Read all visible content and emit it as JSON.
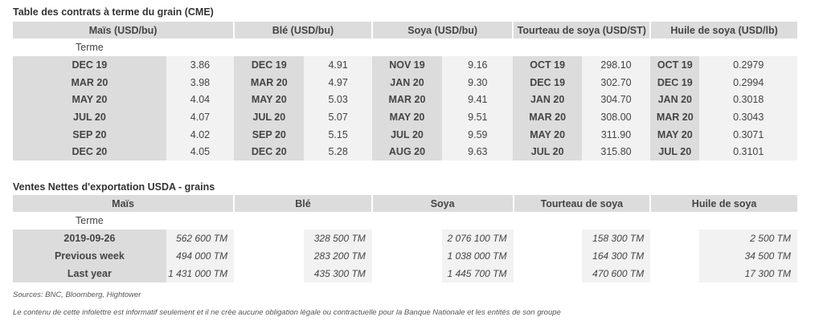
{
  "futures": {
    "title": "Table des contrats à terme du grain (CME)",
    "terme_label": "Terme",
    "columns": [
      {
        "header": "Maïs (USD/bu)",
        "rows": [
          [
            "DEC 19",
            "3.86"
          ],
          [
            "MAR 20",
            "3.98"
          ],
          [
            "MAY 20",
            "4.04"
          ],
          [
            "JUL 20",
            "4.07"
          ],
          [
            "SEP 20",
            "4.02"
          ],
          [
            "DEC 20",
            "4.05"
          ]
        ]
      },
      {
        "header": "Blé (USD/bu)",
        "rows": [
          [
            "DEC 19",
            "4.91"
          ],
          [
            "MAR 20",
            "4.97"
          ],
          [
            "MAY 20",
            "5.03"
          ],
          [
            "JUL 20",
            "5.07"
          ],
          [
            "SEP 20",
            "5.15"
          ],
          [
            "DEC 20",
            "5.28"
          ]
        ]
      },
      {
        "header": "Soya (USD/bu)",
        "rows": [
          [
            "NOV 19",
            "9.16"
          ],
          [
            "JAN 20",
            "9.30"
          ],
          [
            "MAR 20",
            "9.41"
          ],
          [
            "MAY 20",
            "9.51"
          ],
          [
            "JUL 20",
            "9.59"
          ],
          [
            "AUG 20",
            "9.63"
          ]
        ]
      },
      {
        "header": "Tourteau de soya (USD/ST)",
        "rows": [
          [
            "OCT 19",
            "298.10"
          ],
          [
            "DEC 19",
            "302.70"
          ],
          [
            "JAN 20",
            "304.70"
          ],
          [
            "MAR 20",
            "308.00"
          ],
          [
            "MAY 20",
            "311.90"
          ],
          [
            "JUL 20",
            "315.80"
          ]
        ]
      },
      {
        "header": "Huile de soya (USD/lb)",
        "rows": [
          [
            "OCT 19",
            "0.2979"
          ],
          [
            "DEC 19",
            "0.2994"
          ],
          [
            "JAN 20",
            "0.3018"
          ],
          [
            "MAR 20",
            "0.3043"
          ],
          [
            "MAY 20",
            "0.3071"
          ],
          [
            "JUL 20",
            "0.3101"
          ]
        ]
      }
    ]
  },
  "exports": {
    "title": "Ventes Nettes d'exportation USDA - grains",
    "terme_label": "Terme",
    "headers": [
      "Maïs",
      "Blé",
      "Soya",
      "Tourteau de soya",
      "Huile de soya"
    ],
    "rows": [
      {
        "label": "2019-09-26",
        "values": [
          "562 600 TM",
          "328 500 TM",
          "2 076 100 TM",
          "158 300 TM",
          "2 500 TM"
        ]
      },
      {
        "label": "Previous week",
        "values": [
          "494 000 TM",
          "283 200 TM",
          "1 038 000 TM",
          "164 300 TM",
          "34 500 TM"
        ]
      },
      {
        "label": "Last year",
        "values": [
          "1 431 000 TM",
          "435 300 TM",
          "1 445 700 TM",
          "470 600 TM",
          "17 300 TM"
        ]
      }
    ]
  },
  "footer": {
    "sources": "Sources: BNC, Bloomberg, Hightower",
    "disclaimer": "Le contenu de cette infolettre est informatif seulement et il ne crée aucune obligation légale ou contractuelle pour la Banque Nationale et les entités de son groupe"
  }
}
